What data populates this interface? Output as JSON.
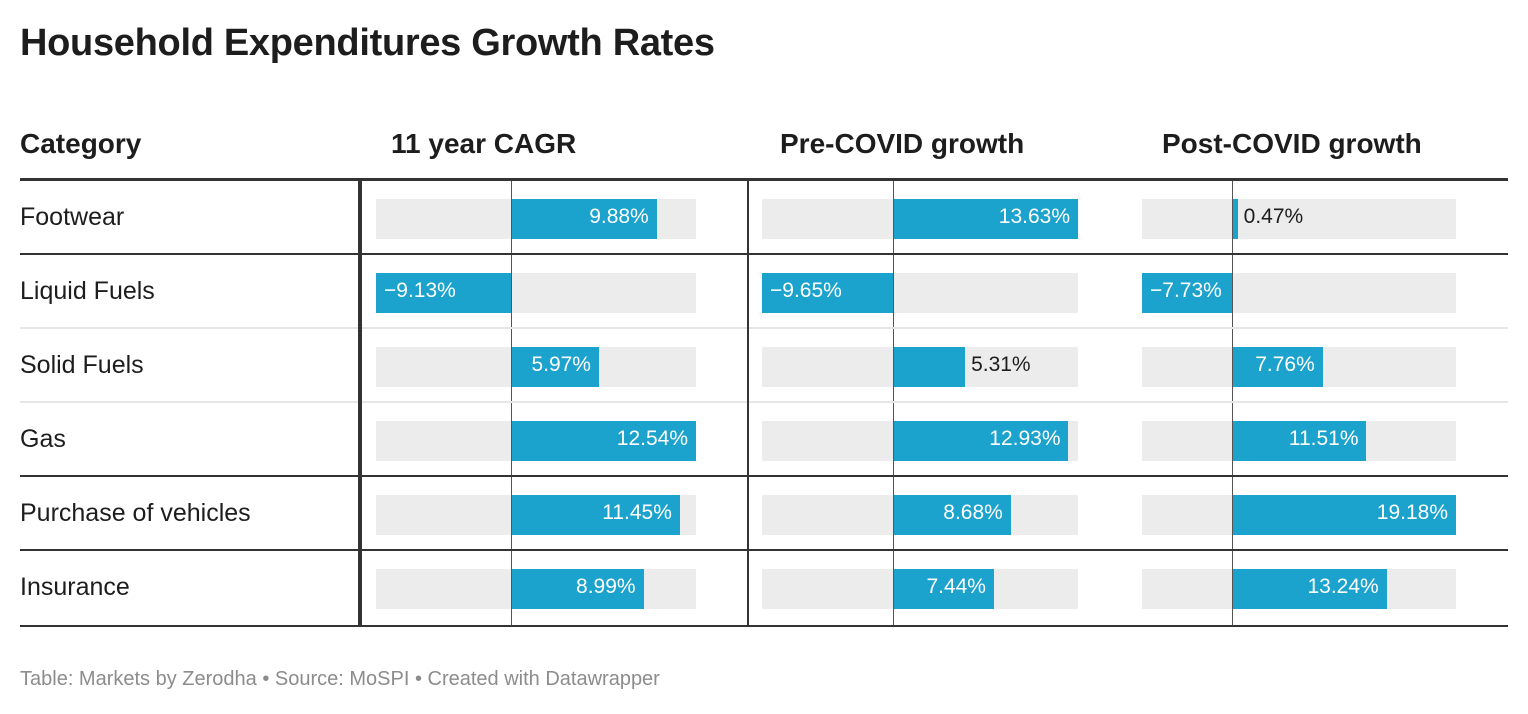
{
  "title": "Household Expenditures Growth Rates",
  "footer": "Table: Markets by Zerodha • Source: MoSPI • Created with Datawrapper",
  "colors": {
    "bar": "#1ba2cd",
    "bar_bg": "#ececec",
    "rule": "#333333"
  },
  "chart_data": {
    "type": "table",
    "columns": [
      "Category",
      "11 year CAGR",
      "Pre-COVID growth",
      "Post-COVID growth"
    ],
    "unit": "%",
    "rows": [
      {
        "category": "Footwear",
        "values": [
          9.88,
          13.63,
          0.47
        ],
        "labels": [
          "9.88%",
          "13.63%",
          "0.47%"
        ]
      },
      {
        "category": "Liquid Fuels",
        "values": [
          -9.13,
          -9.65,
          -7.73
        ],
        "labels": [
          "−9.13%",
          "−9.65%",
          "−7.73%"
        ]
      },
      {
        "category": "Solid Fuels",
        "values": [
          5.97,
          5.31,
          7.76
        ],
        "labels": [
          "5.97%",
          "5.31%",
          "7.76%"
        ]
      },
      {
        "category": "Gas",
        "values": [
          12.54,
          12.93,
          11.51
        ],
        "labels": [
          "12.54%",
          "12.93%",
          "11.51%"
        ]
      },
      {
        "category": "Purchase of vehicles",
        "values": [
          11.45,
          8.68,
          19.18
        ],
        "labels": [
          "11.45%",
          "8.68%",
          "19.18%"
        ]
      },
      {
        "category": "Insurance",
        "values": [
          8.99,
          7.44,
          13.24
        ],
        "labels": [
          "8.99%",
          "7.44%",
          "13.24%"
        ]
      }
    ]
  }
}
